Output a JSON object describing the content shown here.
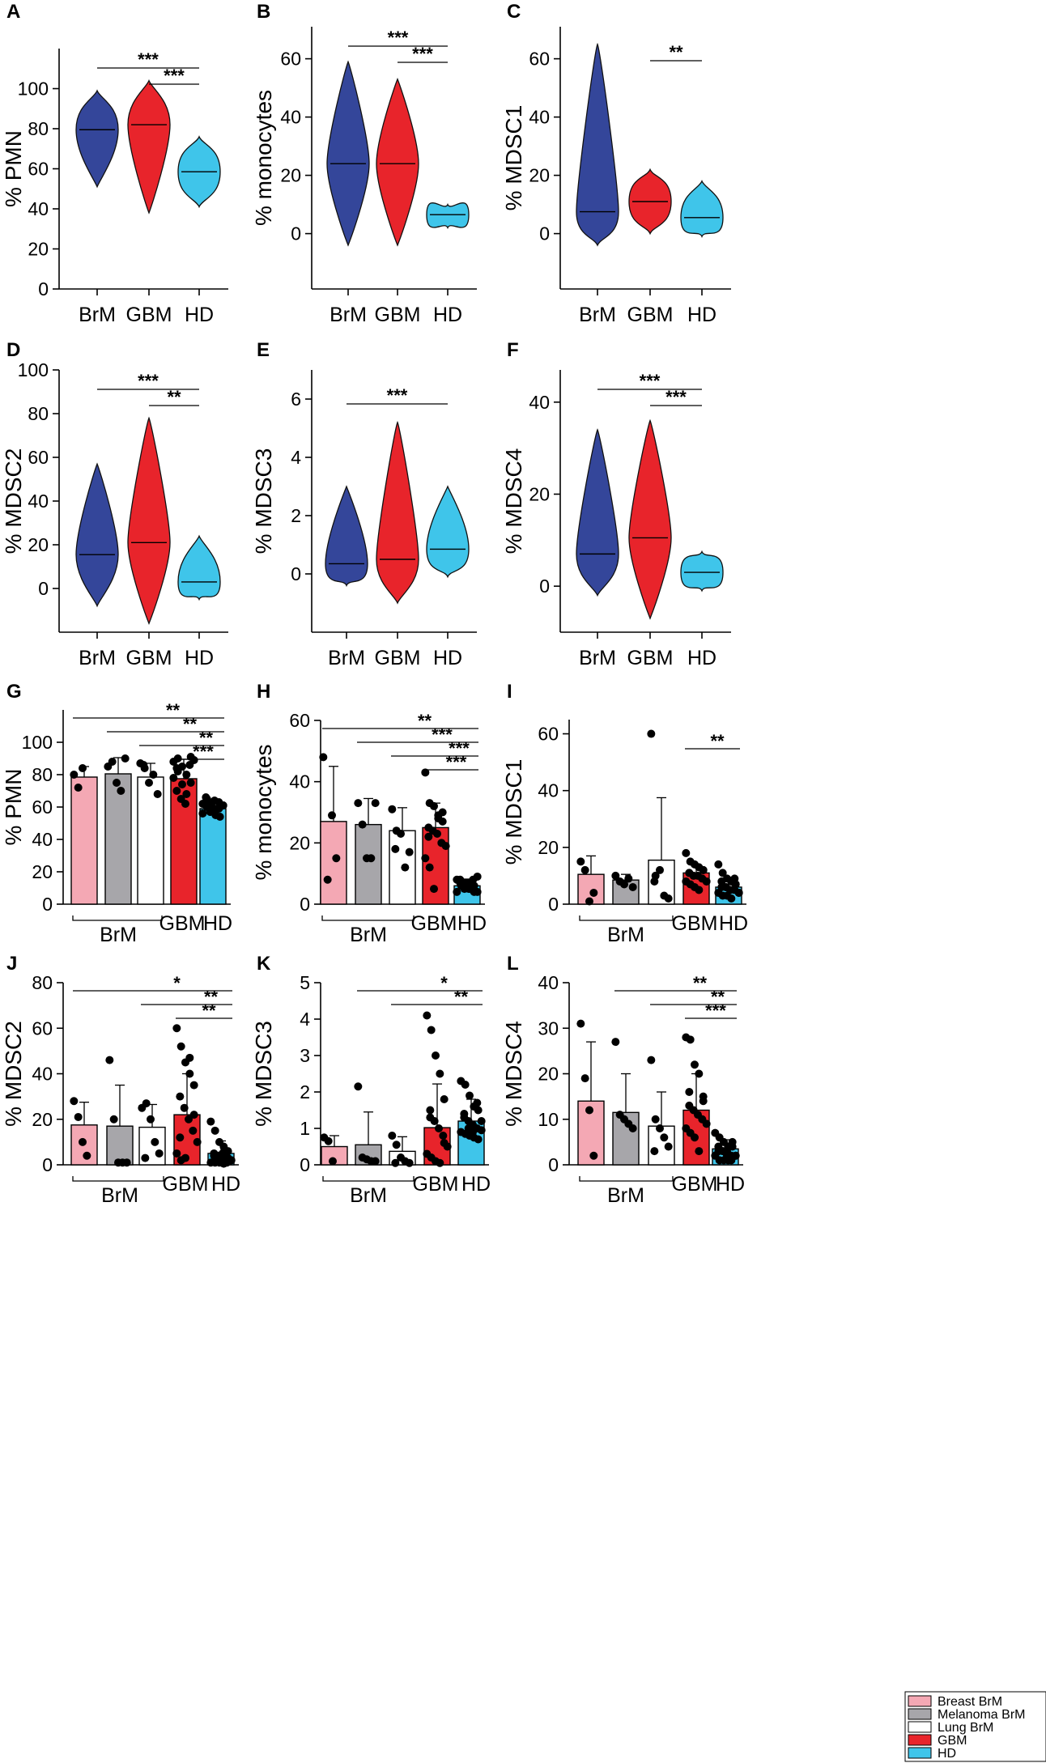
{
  "colors": {
    "brm": "#34469a",
    "gbm": "#e8242b",
    "hd": "#3fc5ea",
    "breast": "#f4a8b4",
    "melanoma": "#a7a6aa",
    "lung": "#ffffff",
    "axis": "#000000"
  },
  "legend": {
    "items": [
      {
        "label": "Breast BrM",
        "color": "#f4a8b4"
      },
      {
        "label": "Melanoma BrM",
        "color": "#a7a6aa"
      },
      {
        "label": "Lung BrM",
        "color": "#ffffff"
      },
      {
        "label": "GBM",
        "color": "#e8242b"
      },
      {
        "label": "HD",
        "color": "#3fc5ea"
      }
    ]
  },
  "chart_data": [
    {
      "panel": "A",
      "type": "violin",
      "ylabel": "% PMN",
      "ylim": [
        0,
        120
      ],
      "yticks": [
        0,
        20,
        40,
        60,
        80,
        100
      ],
      "categories": [
        "BrM",
        "GBM",
        "HD"
      ],
      "series": [
        {
          "name": "BrM",
          "median": 79.5,
          "min": 51,
          "max": 99
        },
        {
          "name": "GBM",
          "median": 82,
          "min": 38,
          "max": 104
        },
        {
          "name": "HD",
          "median": 58.5,
          "min": 41,
          "max": 76
        }
      ],
      "sig": [
        {
          "from": 0,
          "to": 2,
          "label": "***"
        },
        {
          "from": 1,
          "to": 2,
          "label": "***"
        }
      ]
    },
    {
      "panel": "B",
      "type": "violin",
      "ylabel": "% monocytes",
      "ylim": [
        -19,
        71
      ],
      "yticks": [
        0,
        20,
        40,
        60
      ],
      "categories": [
        "BrM",
        "GBM",
        "HD"
      ],
      "series": [
        {
          "name": "BrM",
          "median": 24,
          "min": -4,
          "max": 59
        },
        {
          "name": "GBM",
          "median": 24,
          "min": -4,
          "max": 53
        },
        {
          "name": "HD",
          "median": 6.5,
          "min": 2,
          "max": 10
        }
      ],
      "sig": [
        {
          "from": 0,
          "to": 2,
          "label": "***"
        },
        {
          "from": 1,
          "to": 2,
          "label": "***"
        }
      ]
    },
    {
      "panel": "C",
      "type": "violin",
      "ylabel": "% MDSC1",
      "ylim": [
        -19,
        71
      ],
      "yticks": [
        0,
        20,
        40,
        60
      ],
      "categories": [
        "BrM",
        "GBM",
        "HD"
      ],
      "series": [
        {
          "name": "BrM",
          "median": 7.5,
          "min": -4,
          "max": 65
        },
        {
          "name": "GBM",
          "median": 11,
          "min": 0,
          "max": 22
        },
        {
          "name": "HD",
          "median": 5.5,
          "min": -1,
          "max": 18
        }
      ],
      "sig": [
        {
          "from": 1,
          "to": 2,
          "label": "**"
        }
      ]
    },
    {
      "panel": "D",
      "type": "violin",
      "ylabel": "% MDSC2",
      "ylim": [
        -20,
        100
      ],
      "yticks": [
        0,
        20,
        40,
        60,
        80,
        100
      ],
      "categories": [
        "BrM",
        "GBM",
        "HD"
      ],
      "series": [
        {
          "name": "BrM",
          "median": 15.5,
          "min": -8,
          "max": 57
        },
        {
          "name": "GBM",
          "median": 21,
          "min": -16,
          "max": 78
        },
        {
          "name": "HD",
          "median": 3,
          "min": -5,
          "max": 24
        }
      ],
      "sig": [
        {
          "from": 0,
          "to": 2,
          "label": "***"
        },
        {
          "from": 1,
          "to": 2,
          "label": "**"
        }
      ]
    },
    {
      "panel": "E",
      "type": "violin",
      "ylabel": "% MDSC3",
      "ylim": [
        -2,
        7
      ],
      "yticks": [
        0,
        2,
        4,
        6
      ],
      "categories": [
        "BrM",
        "GBM",
        "HD"
      ],
      "series": [
        {
          "name": "BrM",
          "median": 0.35,
          "min": -0.4,
          "max": 3
        },
        {
          "name": "GBM",
          "median": 0.5,
          "min": -1,
          "max": 5.2
        },
        {
          "name": "HD",
          "median": 0.85,
          "min": -0.1,
          "max": 3
        }
      ],
      "sig": [
        {
          "from": 0,
          "to": 2,
          "label": "***"
        }
      ]
    },
    {
      "panel": "F",
      "type": "violin",
      "ylabel": "% MDSC4",
      "ylim": [
        -10,
        47
      ],
      "yticks": [
        0,
        20,
        40
      ],
      "categories": [
        "BrM",
        "GBM",
        "HD"
      ],
      "series": [
        {
          "name": "BrM",
          "median": 7,
          "min": -2,
          "max": 34
        },
        {
          "name": "GBM",
          "median": 10.5,
          "min": -7,
          "max": 36
        },
        {
          "name": "HD",
          "median": 3,
          "min": -1,
          "max": 7.5
        }
      ],
      "sig": [
        {
          "from": 0,
          "to": 2,
          "label": "***"
        },
        {
          "from": 1,
          "to": 2,
          "label": "***"
        }
      ]
    },
    {
      "panel": "G",
      "type": "bar",
      "ylabel": "% PMN",
      "ylim": [
        0,
        120
      ],
      "yticks": [
        0,
        20,
        40,
        60,
        80,
        100
      ],
      "groups": [
        "Breast BrM",
        "Melanoma BrM",
        "Lung BrM",
        "GBM",
        "HD"
      ],
      "values": [
        78.5,
        80.5,
        78.5,
        77.5,
        59
      ],
      "errors": [
        6.5,
        10,
        8.5,
        12,
        6
      ],
      "points": [
        [
          80,
          72,
          84
        ],
        [
          85,
          88,
          75,
          70,
          90
        ],
        [
          87,
          84,
          75,
          80,
          68,
          86
        ],
        [
          88,
          90,
          85,
          80,
          75,
          70,
          65,
          62,
          86,
          89,
          78,
          82,
          74,
          68,
          91,
          84
        ],
        [
          62,
          65,
          58,
          55,
          60,
          63,
          57,
          64,
          59,
          61,
          56,
          60,
          62,
          58,
          54,
          66,
          57,
          59,
          63,
          61
        ]
      ],
      "category_labels": [
        "BrM",
        "GBM",
        "HD"
      ],
      "sig": [
        {
          "from": 0,
          "to": 4,
          "label": "**"
        },
        {
          "from": 1,
          "to": 4,
          "label": "**"
        },
        {
          "from": 2,
          "to": 4,
          "label": "**"
        },
        {
          "from": 3,
          "to": 4,
          "label": "***"
        }
      ]
    },
    {
      "panel": "H",
      "type": "bar",
      "ylabel": "% monocytes",
      "ylim": [
        0,
        60
      ],
      "yticks": [
        0,
        20,
        40,
        60
      ],
      "groups": [
        "Breast BrM",
        "Melanoma BrM",
        "Lung BrM",
        "GBM",
        "HD"
      ],
      "values": [
        27,
        26,
        24,
        25,
        6
      ],
      "errors": [
        18,
        8.5,
        7.5,
        8,
        2.2
      ],
      "points": [
        [
          48,
          8,
          29,
          15
        ],
        [
          33,
          26,
          15,
          15,
          33
        ],
        [
          31,
          24,
          23,
          12,
          17,
          18
        ],
        [
          43,
          33,
          32,
          29,
          27,
          25,
          24,
          23,
          20,
          19,
          15,
          12,
          5,
          28,
          30,
          22
        ],
        [
          8,
          7,
          6,
          5,
          4,
          7,
          6,
          5,
          8,
          9,
          4,
          6,
          7,
          5,
          6,
          8,
          5,
          7,
          6,
          4
        ]
      ],
      "category_labels": [
        "BrM",
        "GBM",
        "HD"
      ],
      "sig": [
        {
          "from": 0,
          "to": 4,
          "label": "**"
        },
        {
          "from": 1,
          "to": 4,
          "label": "***"
        },
        {
          "from": 2,
          "to": 4,
          "label": "***"
        },
        {
          "from": 3,
          "to": 4,
          "label": "***"
        }
      ]
    },
    {
      "panel": "I",
      "type": "bar",
      "ylabel": "% MDSC1",
      "ylim": [
        0,
        65
      ],
      "yticks": [
        0,
        20,
        40,
        60
      ],
      "groups": [
        "Breast BrM",
        "Melanoma BrM",
        "Lung BrM",
        "GBM",
        "HD"
      ],
      "values": [
        10.5,
        8.5,
        15.5,
        11,
        6
      ],
      "errors": [
        6.5,
        2,
        22,
        3,
        3.5
      ],
      "points": [
        [
          15,
          12,
          1,
          4
        ],
        [
          10,
          8,
          7,
          9,
          6
        ],
        [
          60,
          10,
          12,
          3,
          2,
          8
        ],
        [
          18,
          15,
          14,
          13,
          12,
          11,
          10,
          10,
          9,
          8,
          8,
          7,
          6,
          5,
          12,
          11
        ],
        [
          14,
          11,
          9,
          8,
          7,
          6,
          6,
          5,
          5,
          4,
          4,
          3,
          3,
          2,
          7,
          8,
          6,
          5,
          9,
          4
        ]
      ],
      "category_labels": [
        "BrM",
        "GBM",
        "HD"
      ],
      "sig": [
        {
          "from": 3,
          "to": 4,
          "label": "**"
        }
      ]
    },
    {
      "panel": "J",
      "type": "bar",
      "ylabel": "% MDSC2",
      "ylim": [
        0,
        80
      ],
      "yticks": [
        0,
        20,
        40,
        60,
        80
      ],
      "groups": [
        "Breast BrM",
        "Melanoma BrM",
        "Lung BrM",
        "GBM",
        "HD"
      ],
      "values": [
        17.5,
        17,
        16.5,
        22,
        5
      ],
      "errors": [
        10,
        18,
        10,
        18,
        5.5
      ],
      "points": [
        [
          28,
          21,
          10,
          4
        ],
        [
          46,
          20,
          1,
          1,
          1
        ],
        [
          25,
          27,
          20,
          10,
          5,
          3
        ],
        [
          60,
          52,
          45,
          40,
          35,
          30,
          25,
          20,
          15,
          10,
          5,
          2,
          3,
          47,
          22,
          12
        ],
        [
          19,
          15,
          10,
          8,
          6,
          5,
          4,
          3,
          2,
          2,
          1,
          1,
          1,
          0.5,
          3,
          4,
          2,
          5,
          1,
          2
        ]
      ],
      "category_labels": [
        "BrM",
        "GBM",
        "HD"
      ],
      "sig": [
        {
          "from": 0,
          "to": 4,
          "label": "*"
        },
        {
          "from": 2,
          "to": 4,
          "label": "**"
        },
        {
          "from": 3,
          "to": 4,
          "label": "**"
        }
      ]
    },
    {
      "panel": "K",
      "type": "bar",
      "ylabel": "% MDSC3",
      "ylim": [
        0,
        5
      ],
      "yticks": [
        0,
        1,
        2,
        3,
        4,
        5
      ],
      "groups": [
        "Breast BrM",
        "Melanoma BrM",
        "Lung BrM",
        "GBM",
        "HD"
      ],
      "values": [
        0.5,
        0.55,
        0.37,
        1.02,
        1.2
      ],
      "errors": [
        0.3,
        0.9,
        0.4,
        1.2,
        0.6
      ],
      "points": [
        [
          0.75,
          0.65,
          0.1
        ],
        [
          2.15,
          0.2,
          0.15,
          0.1,
          0.1
        ],
        [
          0.8,
          0.55,
          0.2,
          0.1,
          0.05,
          0.05
        ],
        [
          4.1,
          3.7,
          3.0,
          2.5,
          1.8,
          1.5,
          1.2,
          1.0,
          0.8,
          0.5,
          0.3,
          0.2,
          0.1,
          0.05,
          0.6,
          1.3
        ],
        [
          2.3,
          2.2,
          1.9,
          1.6,
          1.5,
          1.3,
          1.2,
          1.1,
          1.0,
          0.95,
          0.9,
          0.85,
          0.8,
          0.75,
          0.7,
          1.4,
          1.0,
          0.9,
          1.7,
          1.2
        ]
      ],
      "category_labels": [
        "BrM",
        "GBM",
        "HD"
      ],
      "sig": [
        {
          "from": 1,
          "to": 4,
          "label": "*"
        },
        {
          "from": 2,
          "to": 4,
          "label": "**"
        }
      ]
    },
    {
      "panel": "L",
      "type": "bar",
      "ylabel": "% MDSC4",
      "ylim": [
        0,
        40
      ],
      "yticks": [
        0,
        10,
        20,
        30,
        40
      ],
      "groups": [
        "Breast BrM",
        "Melanoma BrM",
        "Lung BrM",
        "GBM",
        "HD"
      ],
      "values": [
        14,
        11.5,
        8.5,
        12,
        3.5
      ],
      "errors": [
        13,
        8.5,
        7.5,
        8,
        2
      ],
      "points": [
        [
          31,
          19,
          12,
          2
        ],
        [
          27,
          11,
          10,
          9,
          8
        ],
        [
          23,
          10,
          8,
          6,
          4,
          3
        ],
        [
          28,
          27.5,
          22,
          20,
          15,
          13,
          12,
          11,
          10,
          9,
          8,
          7,
          6,
          3,
          14,
          16
        ],
        [
          7,
          6,
          5,
          4,
          4,
          3,
          3,
          3,
          2,
          2,
          2,
          1,
          1,
          1,
          5,
          4,
          3,
          2,
          1,
          2
        ]
      ],
      "category_labels": [
        "BrM",
        "GBM",
        "HD"
      ],
      "sig": [
        {
          "from": 1,
          "to": 4,
          "label": "**"
        },
        {
          "from": 2,
          "to": 4,
          "label": "**"
        },
        {
          "from": 3,
          "to": 4,
          "label": "***"
        }
      ]
    }
  ]
}
